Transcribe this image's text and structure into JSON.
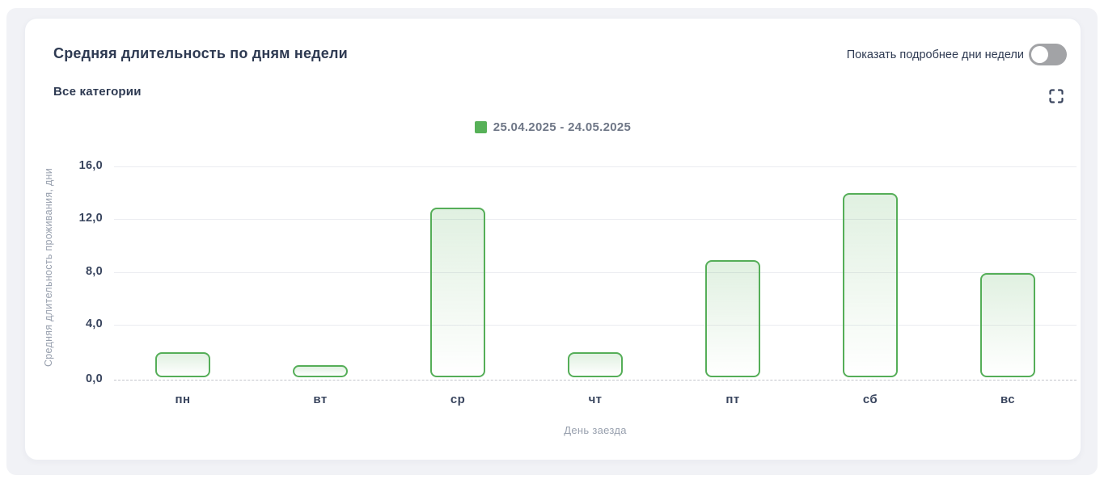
{
  "header": {
    "title": "Средняя длительность по дням недели",
    "subtitle": "Все категории",
    "toggle_label": "Показать подробнее дни недели",
    "toggle_on": false
  },
  "legend": {
    "label": "25.04.2025 - 24.05.2025",
    "color": "#57b158"
  },
  "chart_data": {
    "type": "bar",
    "title": "Средняя длительность по дням недели",
    "categories": [
      "пн",
      "вт",
      "ср",
      "чт",
      "пт",
      "сб",
      "вс"
    ],
    "series": [
      {
        "name": "25.04.2025 - 24.05.2025",
        "color": "#57b158",
        "values": [
          1.9,
          0.9,
          12.9,
          1.9,
          8.9,
          14.0,
          7.9
        ]
      }
    ],
    "xlabel": "День заезда",
    "ylabel": "Средняя длительность проживания, дни",
    "ylim": [
      0,
      16
    ],
    "yticks": [
      0,
      4,
      8,
      12,
      16
    ],
    "ytick_labels": [
      "0,0",
      "4,0",
      "8,0",
      "12,0",
      "16,0"
    ],
    "grid": true,
    "legend_position": "top"
  },
  "colors": {
    "accent_green": "#57b158",
    "bar_border": "#55ae58",
    "bar_fill_top": "rgba(85,174,88,0.18)",
    "bar_fill_bottom": "rgba(85,174,88,0.0)",
    "title_text": "#2e3a52",
    "tick_text": "#39455e",
    "muted_text": "#98a0ae",
    "legend_text": "#6f7787",
    "gridline": "#ebecf1",
    "zero_line": "#c3c5cb",
    "panel_bg": "#f1f2f6",
    "card_bg": "#ffffff",
    "toggle_track": "#a2a3a6",
    "icon_color": "#3a455e"
  }
}
